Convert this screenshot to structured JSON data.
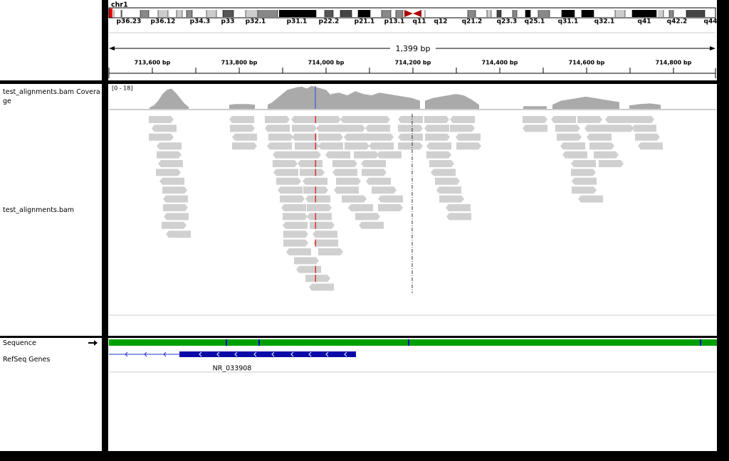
{
  "ideogram": {
    "chromosome": "chr1",
    "bands": [
      "p36.23",
      "p36.12",
      "p34.3",
      "p33",
      "p32.1",
      "p31.1",
      "p22.2",
      "p21.1",
      "p13.1",
      "q11",
      "q12",
      "q21.2",
      "q23.3",
      "q25.1",
      "q31.1",
      "q32.1",
      "q41",
      "q42.2",
      "q44"
    ]
  },
  "ruler": {
    "span": "1,399 bp",
    "ticks": [
      "713,600 bp",
      "713,800 bp",
      "714,000 bp",
      "714,200 bp",
      "714,400 bp",
      "714,600 bp",
      "714,800 bp"
    ]
  },
  "tracks": {
    "coverage": {
      "name": "test_alignments.bam Coverage",
      "range": "[0 - 18]"
    },
    "alignments": {
      "name": "test_alignments.bam"
    },
    "sequence": {
      "name": "Sequence"
    },
    "genes": {
      "name": "RefSeq Genes",
      "feature": "NR_033908"
    }
  }
}
